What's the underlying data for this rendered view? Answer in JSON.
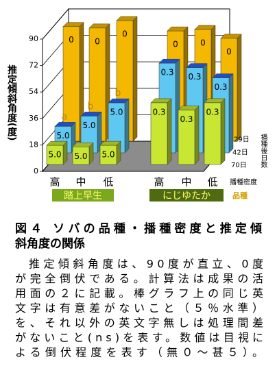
{
  "chart_data": {
    "type": "bar3d",
    "y_label": "推定傾斜角度(度)",
    "groups": [
      "踏上早生",
      "にじゆたか"
    ],
    "group_label": "品種",
    "categories": [
      "高",
      "中",
      "低",
      "高",
      "中",
      "低"
    ],
    "category_label": "播種密度",
    "depth_label": "播種後日数",
    "ylim": [
      0,
      90
    ],
    "yticks": [
      0,
      18,
      36,
      54,
      72,
      90
    ],
    "series": [
      {
        "name": "29日",
        "color": "#f5b800",
        "values": [
          78,
          77,
          82,
          75,
          76,
          70
        ],
        "bar_labels": [
          "0",
          "0",
          "0",
          "0",
          "0",
          "0"
        ]
      },
      {
        "name": "42日",
        "color": "#5ec8f2",
        "values": [
          18,
          25,
          34,
          61,
          58,
          51
        ],
        "bar_labels": [
          "5.0",
          "5.0",
          "5.0",
          "0.3",
          "0.3",
          "0.3"
        ],
        "letters": [
          "a",
          "b",
          "b",
          null,
          null,
          null
        ]
      },
      {
        "name": "70日",
        "color": "#c8e632",
        "values": [
          13,
          12,
          13,
          42,
          37,
          42
        ],
        "bar_labels": [
          "5.0",
          "5.0",
          "5.0",
          "0.3",
          "0.3",
          "0.3"
        ]
      }
    ]
  },
  "caption": {
    "title_lines": [
      "図４ ソバの品種・播種密度と推定傾",
      "斜角度の関係"
    ],
    "body_lines": [
      "推定傾斜角度は、90度が直立、0度",
      "が完全倒伏である。計算法は成果の活",
      "用面の２に記載。棒グラフ上の同じ英",
      "文字は有意差がないこと（５％水準）",
      "を、それ以外の英文字無しは処理間差",
      "がないこと(ns)を表す。数値は目視に",
      "よる倒伏程度を表す（無０～甚５）。"
    ]
  }
}
